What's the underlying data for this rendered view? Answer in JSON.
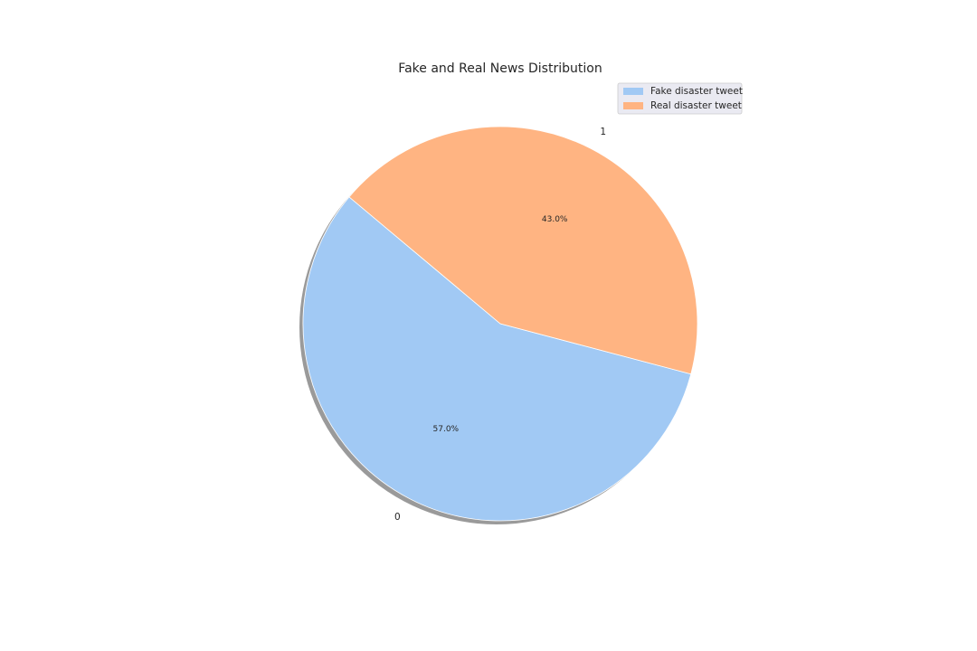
{
  "chart_data": {
    "type": "pie",
    "title": "Fake and Real News Distribution",
    "categories": [
      "0",
      "1"
    ],
    "values": [
      57.0,
      43.0
    ],
    "percent_labels": [
      "57.0%",
      "43.0%"
    ],
    "colors": [
      "#a1c9f4",
      "#ffb482"
    ],
    "legend": {
      "placement": "top-right",
      "entries": [
        "Fake disaster tweet",
        "Real disaster tweet"
      ]
    },
    "shadow": true
  }
}
